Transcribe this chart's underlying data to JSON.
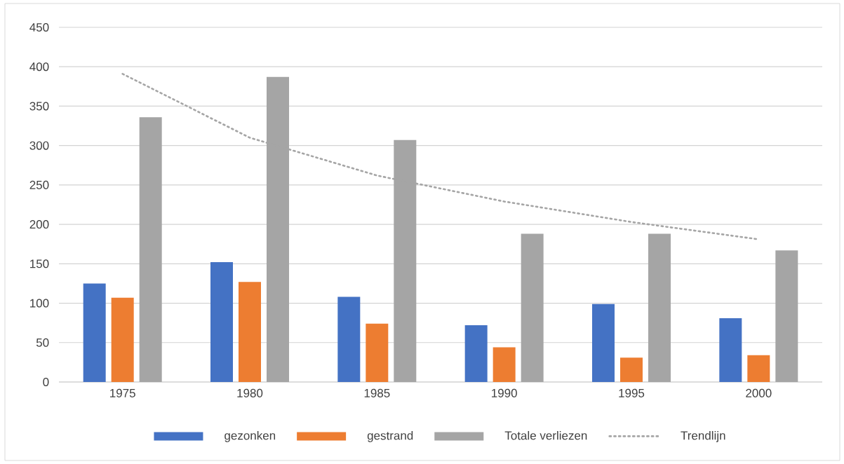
{
  "chart_data": {
    "type": "bar",
    "categories": [
      "1975",
      "1980",
      "1985",
      "1990",
      "1995",
      "2000"
    ],
    "series": [
      {
        "name": "gezonken",
        "color": "#4472c4",
        "values": [
          125,
          152,
          108,
          72,
          99,
          81
        ]
      },
      {
        "name": "gestrand",
        "color": "#ed7d31",
        "values": [
          107,
          127,
          74,
          44,
          31,
          34
        ]
      },
      {
        "name": "Totale verliezen",
        "color": "#a5a5a5",
        "values": [
          336,
          387,
          307,
          188,
          188,
          167
        ]
      },
      {
        "name": "Trendlijn",
        "type": "line",
        "color": "#a5a5a5",
        "line_style": "dotted",
        "values": [
          391,
          310,
          262,
          229,
          203,
          181
        ]
      }
    ],
    "ylim": [
      0,
      450
    ],
    "yticks": [
      0,
      50,
      100,
      150,
      200,
      250,
      300,
      350,
      400,
      450
    ],
    "grid": "y",
    "legend": "bottom"
  }
}
